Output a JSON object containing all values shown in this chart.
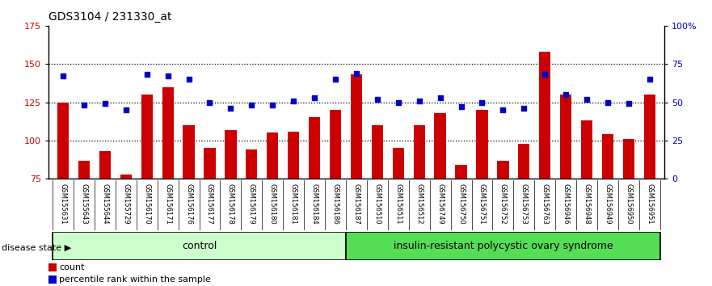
{
  "title": "GDS3104 / 231330_at",
  "samples": [
    "GSM155631",
    "GSM155643",
    "GSM155644",
    "GSM155729",
    "GSM156170",
    "GSM156171",
    "GSM156176",
    "GSM156177",
    "GSM156178",
    "GSM156179",
    "GSM156180",
    "GSM156181",
    "GSM156184",
    "GSM156186",
    "GSM156187",
    "GSM156510",
    "GSM156511",
    "GSM156512",
    "GSM156749",
    "GSM156750",
    "GSM156751",
    "GSM156752",
    "GSM156753",
    "GSM156763",
    "GSM156946",
    "GSM156948",
    "GSM156949",
    "GSM156950",
    "GSM156951"
  ],
  "counts": [
    125,
    87,
    93,
    78,
    130,
    135,
    110,
    95,
    107,
    94,
    105,
    106,
    115,
    120,
    143,
    110,
    95,
    110,
    118,
    84,
    120,
    87,
    98,
    158,
    130,
    113,
    104,
    101,
    130
  ],
  "percentile_ranks": [
    67,
    48,
    49,
    45,
    68,
    67,
    65,
    50,
    46,
    48,
    48,
    51,
    53,
    65,
    69,
    52,
    50,
    51,
    53,
    47,
    50,
    45,
    46,
    68,
    55,
    52,
    50,
    49,
    65
  ],
  "control_count": 14,
  "disease_count": 15,
  "bar_color": "#cc0000",
  "dot_color": "#0000cc",
  "control_color": "#ccffcc",
  "disease_color": "#55dd55",
  "ylim_left": [
    75,
    175
  ],
  "ylim_right": [
    0,
    100
  ],
  "yticks_left": [
    75,
    100,
    125,
    150,
    175
  ],
  "yticks_right": [
    0,
    25,
    50,
    75,
    100
  ],
  "ytick_labels_right": [
    "0",
    "25",
    "50",
    "75",
    "100%"
  ],
  "control_label": "control",
  "disease_label": "insulin-resistant polycystic ovary syndrome",
  "disease_state_label": "disease state",
  "legend_count": "count",
  "legend_percentile": "percentile rank within the sample",
  "label_bg_color": "#cccccc",
  "plot_bg_color": "#ffffff",
  "gridline_color": "#000000"
}
